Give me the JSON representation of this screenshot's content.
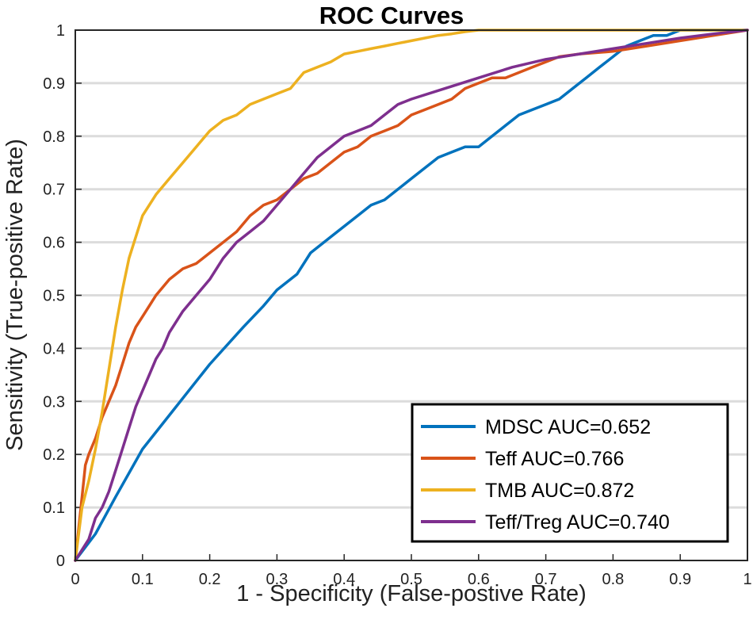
{
  "chart_data": {
    "type": "line",
    "title": "ROC Curves",
    "xlabel": "1 - Specificity (False-postive Rate)",
    "ylabel": "Sensitivity (True-positive Rate)",
    "xlim": [
      0,
      1
    ],
    "ylim": [
      0,
      1
    ],
    "xticks": [
      0,
      0.1,
      0.2,
      0.3,
      0.4,
      0.5,
      0.6,
      0.7,
      0.8,
      0.9,
      1
    ],
    "xtick_labels": [
      "0",
      "0.1",
      "0.2",
      "0.3",
      "0.4",
      "0.5",
      "0.6",
      "0.7",
      "0.8",
      "0.9",
      "1"
    ],
    "yticks": [
      0,
      0.1,
      0.2,
      0.3,
      0.4,
      0.5,
      0.6,
      0.7,
      0.8,
      0.9,
      1
    ],
    "ytick_labels": [
      "0",
      "0.1",
      "0.2",
      "0.3",
      "0.4",
      "0.5",
      "0.6",
      "0.7",
      "0.8",
      "0.9",
      "1"
    ],
    "grid": "horizontal",
    "legend_position": "bottom-right",
    "series": [
      {
        "name": "MDSC AUC=0.652",
        "color": "#0072BD",
        "x": [
          0,
          0.03,
          0.06,
          0.1,
          0.15,
          0.2,
          0.25,
          0.28,
          0.3,
          0.33,
          0.35,
          0.38,
          0.4,
          0.42,
          0.44,
          0.46,
          0.48,
          0.5,
          0.52,
          0.54,
          0.56,
          0.58,
          0.6,
          0.62,
          0.64,
          0.66,
          0.68,
          0.7,
          0.72,
          0.74,
          0.76,
          0.78,
          0.8,
          0.82,
          0.84,
          0.86,
          0.88,
          0.9,
          0.92,
          0.95,
          1.0
        ],
        "y": [
          0,
          0.05,
          0.12,
          0.21,
          0.29,
          0.37,
          0.44,
          0.48,
          0.51,
          0.54,
          0.58,
          0.61,
          0.63,
          0.65,
          0.67,
          0.68,
          0.7,
          0.72,
          0.74,
          0.76,
          0.77,
          0.78,
          0.78,
          0.8,
          0.82,
          0.84,
          0.85,
          0.86,
          0.87,
          0.89,
          0.91,
          0.93,
          0.95,
          0.97,
          0.98,
          0.99,
          0.99,
          1.0,
          1.0,
          1.0,
          1.0
        ]
      },
      {
        "name": "Teff AUC=0.766",
        "color": "#D95319",
        "x": [
          0,
          0.005,
          0.01,
          0.015,
          0.02,
          0.03,
          0.04,
          0.05,
          0.06,
          0.07,
          0.08,
          0.09,
          0.1,
          0.11,
          0.12,
          0.14,
          0.16,
          0.18,
          0.2,
          0.22,
          0.24,
          0.26,
          0.28,
          0.3,
          0.32,
          0.34,
          0.36,
          0.38,
          0.4,
          0.42,
          0.44,
          0.46,
          0.48,
          0.5,
          0.52,
          0.54,
          0.56,
          0.58,
          0.6,
          0.62,
          0.64,
          0.66,
          0.68,
          0.7,
          0.72,
          0.75,
          0.8,
          0.85,
          0.9,
          0.95,
          1.0
        ],
        "y": [
          0,
          0.06,
          0.12,
          0.18,
          0.2,
          0.23,
          0.27,
          0.3,
          0.33,
          0.37,
          0.41,
          0.44,
          0.46,
          0.48,
          0.5,
          0.53,
          0.55,
          0.56,
          0.58,
          0.6,
          0.62,
          0.65,
          0.67,
          0.68,
          0.7,
          0.72,
          0.73,
          0.75,
          0.77,
          0.78,
          0.8,
          0.81,
          0.82,
          0.84,
          0.85,
          0.86,
          0.87,
          0.89,
          0.9,
          0.91,
          0.91,
          0.92,
          0.93,
          0.94,
          0.95,
          0.955,
          0.96,
          0.97,
          0.98,
          0.99,
          1.0
        ]
      },
      {
        "name": "TMB AUC=0.872",
        "color": "#EDB120",
        "x": [
          0,
          0.01,
          0.02,
          0.03,
          0.04,
          0.05,
          0.06,
          0.07,
          0.08,
          0.09,
          0.1,
          0.12,
          0.14,
          0.16,
          0.18,
          0.2,
          0.22,
          0.24,
          0.26,
          0.28,
          0.3,
          0.32,
          0.34,
          0.36,
          0.38,
          0.4,
          0.42,
          0.44,
          0.46,
          0.48,
          0.5,
          0.52,
          0.54,
          0.56,
          0.58,
          0.6,
          0.62,
          0.65,
          1.0
        ],
        "y": [
          0,
          0.1,
          0.15,
          0.21,
          0.28,
          0.36,
          0.44,
          0.51,
          0.57,
          0.61,
          0.65,
          0.69,
          0.72,
          0.75,
          0.78,
          0.81,
          0.83,
          0.84,
          0.86,
          0.87,
          0.88,
          0.89,
          0.92,
          0.93,
          0.94,
          0.955,
          0.96,
          0.965,
          0.97,
          0.975,
          0.98,
          0.985,
          0.99,
          0.993,
          0.997,
          1.0,
          1.0,
          1.0,
          1.0
        ]
      },
      {
        "name": "Teff/Treg AUC=0.740",
        "color": "#7E2F8E",
        "x": [
          0,
          0.01,
          0.02,
          0.03,
          0.04,
          0.05,
          0.06,
          0.07,
          0.08,
          0.09,
          0.1,
          0.11,
          0.12,
          0.13,
          0.14,
          0.16,
          0.18,
          0.2,
          0.22,
          0.24,
          0.26,
          0.28,
          0.3,
          0.32,
          0.34,
          0.36,
          0.38,
          0.4,
          0.42,
          0.44,
          0.46,
          0.48,
          0.5,
          0.55,
          0.6,
          0.65,
          0.7,
          0.75,
          0.8,
          0.85,
          0.9,
          0.95,
          1.0
        ],
        "y": [
          0,
          0.02,
          0.04,
          0.08,
          0.1,
          0.13,
          0.17,
          0.21,
          0.25,
          0.29,
          0.32,
          0.35,
          0.38,
          0.4,
          0.43,
          0.47,
          0.5,
          0.53,
          0.57,
          0.6,
          0.62,
          0.64,
          0.67,
          0.7,
          0.73,
          0.76,
          0.78,
          0.8,
          0.81,
          0.82,
          0.84,
          0.86,
          0.87,
          0.89,
          0.91,
          0.93,
          0.945,
          0.955,
          0.965,
          0.975,
          0.985,
          0.993,
          1.0
        ]
      }
    ]
  }
}
